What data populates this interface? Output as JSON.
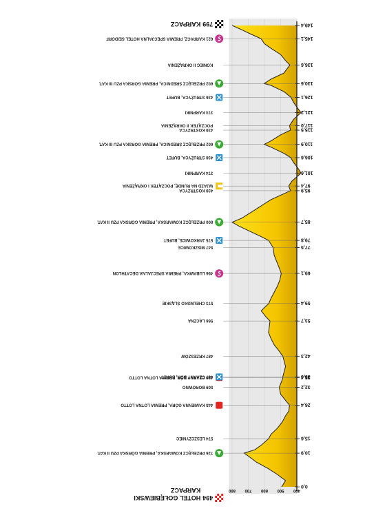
{
  "chart_data": {
    "type": "area",
    "orientation": "rotated-180",
    "start": {
      "alt": "494",
      "name": "HOTEL GOŁĘBIEWSKI",
      "name2": "KARPACZ"
    },
    "finish": {
      "alt": "799",
      "name": "KARPACZ"
    },
    "alt_ticks": [
      400,
      500,
      600,
      700,
      800
    ],
    "alt_range": [
      350,
      880
    ],
    "km_range": [
      0,
      149.4
    ],
    "km_ticks": [
      {
        "km": 0.0,
        "label": "0,0"
      },
      {
        "km": 10.9,
        "label": "10,9"
      },
      {
        "km": 15.6,
        "label": "15,6"
      },
      {
        "km": 26.4,
        "label": "26,4"
      },
      {
        "km": 32.2,
        "label": "32,2"
      },
      {
        "km": 35.4,
        "label": "35,4"
      },
      {
        "km": 35.6,
        "label": "35,6"
      },
      {
        "km": 42.3,
        "label": "42,3"
      },
      {
        "km": 53.7,
        "label": "53,7"
      },
      {
        "km": 59.4,
        "label": "59,4"
      },
      {
        "km": 69.1,
        "label": "69,1"
      },
      {
        "km": 77.5,
        "label": "77,5"
      },
      {
        "km": 79.8,
        "label": "79,8"
      },
      {
        "km": 85.7,
        "label": "85,7"
      },
      {
        "km": 95.9,
        "label": "95,9"
      },
      {
        "km": 97.4,
        "label": "97,4"
      },
      {
        "km": 101.6,
        "label": "101,6"
      },
      {
        "km": 106.6,
        "label": "106,6"
      },
      {
        "km": 110.9,
        "label": "110,9"
      },
      {
        "km": 115.5,
        "label": "115,5"
      },
      {
        "km": 117.0,
        "label": "117,0"
      },
      {
        "km": 121.2,
        "label": "121,2"
      },
      {
        "km": 126.1,
        "label": "126,1"
      },
      {
        "km": 130.6,
        "label": "130,6"
      },
      {
        "km": 136.6,
        "label": "136,6"
      },
      {
        "km": 145.1,
        "label": "145,1"
      },
      {
        "km": 149.4,
        "label": "149,4"
      }
    ],
    "profile": [
      [
        0,
        494
      ],
      [
        2,
        470
      ],
      [
        4,
        520
      ],
      [
        6,
        580
      ],
      [
        8,
        650
      ],
      [
        10,
        700
      ],
      [
        10.9,
        726
      ],
      [
        12,
        660
      ],
      [
        13.5,
        620
      ],
      [
        15.6,
        574
      ],
      [
        17,
        560
      ],
      [
        19,
        520
      ],
      [
        21,
        490
      ],
      [
        23,
        470
      ],
      [
        24.5,
        450
      ],
      [
        26.4,
        445
      ],
      [
        28,
        470
      ],
      [
        30,
        500
      ],
      [
        32.2,
        509
      ],
      [
        34,
        495
      ],
      [
        35.4,
        486
      ],
      [
        35.6,
        487
      ],
      [
        37,
        480
      ],
      [
        39,
        470
      ],
      [
        41,
        480
      ],
      [
        42.3,
        487
      ],
      [
        44,
        510
      ],
      [
        46,
        540
      ],
      [
        48,
        560
      ],
      [
        50,
        575
      ],
      [
        52,
        570
      ],
      [
        53.7,
        566
      ],
      [
        55,
        590
      ],
      [
        57,
        620
      ],
      [
        59.4,
        573
      ],
      [
        61,
        560
      ],
      [
        63,
        540
      ],
      [
        65,
        520
      ],
      [
        67,
        505
      ],
      [
        69.1,
        496
      ],
      [
        71,
        510
      ],
      [
        73,
        525
      ],
      [
        75,
        540
      ],
      [
        77.5,
        547
      ],
      [
        79.8,
        575
      ],
      [
        81,
        620
      ],
      [
        83,
        700
      ],
      [
        84.5,
        760
      ],
      [
        85.7,
        800
      ],
      [
        87,
        740
      ],
      [
        89,
        680
      ],
      [
        91,
        620
      ],
      [
        93,
        560
      ],
      [
        95.9,
        439
      ],
      [
        97.4,
        450
      ],
      [
        99,
        430
      ],
      [
        101.6,
        374
      ],
      [
        103,
        390
      ],
      [
        105,
        420
      ],
      [
        106.6,
        438
      ],
      [
        108,
        480
      ],
      [
        110,
        560
      ],
      [
        110.9,
        602
      ],
      [
        112,
        560
      ],
      [
        114,
        500
      ],
      [
        115.5,
        439
      ],
      [
        117,
        445
      ],
      [
        119,
        420
      ],
      [
        121.2,
        374
      ],
      [
        123,
        400
      ],
      [
        124.5,
        420
      ],
      [
        126.1,
        436
      ],
      [
        128,
        480
      ],
      [
        130,
        560
      ],
      [
        130.6,
        602
      ],
      [
        132,
        560
      ],
      [
        134,
        480
      ],
      [
        136.6,
        443
      ],
      [
        138,
        470
      ],
      [
        140,
        500
      ],
      [
        142,
        560
      ],
      [
        143.5,
        600
      ],
      [
        145.1,
        621
      ],
      [
        146.5,
        680
      ],
      [
        148,
        740
      ],
      [
        149.4,
        799
      ]
    ],
    "waypoints": [
      {
        "km": 10.9,
        "alt": "726",
        "name": "PRZEŁĘCZ KOWARSKA, PREMIA GÓRSKA PZU II KAT.",
        "icon": "mountain-premium",
        "color": "#3aaa35"
      },
      {
        "km": 15.6,
        "alt": "574",
        "name": "LESZCZYNIEC",
        "icon": "none"
      },
      {
        "km": 26.4,
        "alt": "445",
        "name": "KAMIENNA GÓRA, PREMIA LOTNA LOTTO",
        "icon": "sprint",
        "color": "#e32521"
      },
      {
        "km": 32.2,
        "alt": "509",
        "name": "BORÓWNO",
        "icon": "none"
      },
      {
        "km": 35.4,
        "alt": "486",
        "name": "CZARNY BÓR, PREMIA LOTNA LOTTO",
        "icon": "sprint",
        "color": "#e32521"
      },
      {
        "km": 35.6,
        "alt": "487",
        "name": "CZARNY BÓR, BUFET",
        "icon": "feed",
        "color": "#2a8fd0"
      },
      {
        "km": 42.3,
        "alt": "487",
        "name": "KRZESZÓW",
        "icon": "none"
      },
      {
        "km": 53.7,
        "alt": "566",
        "name": "LĄCZNA",
        "icon": "none"
      },
      {
        "km": 59.4,
        "alt": "573",
        "name": "CHEŁMSKO ŚLĄSKIE",
        "icon": "none"
      },
      {
        "km": 69.1,
        "alt": "496",
        "name": "LUBAWKA, PREMIA SPECJALNA DECATHLON",
        "icon": "special",
        "color": "#c8358e"
      },
      {
        "km": 77.5,
        "alt": "547",
        "name": "MISZKOWICE",
        "icon": "none"
      },
      {
        "km": 79.8,
        "alt": "575",
        "name": "JARKOWICE, BUFET",
        "icon": "feed",
        "color": "#2a8fd0"
      },
      {
        "km": 85.7,
        "alt": "800",
        "name": "PRZEŁĘCZ KOWARSKA, PREMIA GÓRSKA PZU II KAT.",
        "icon": "mountain-premium",
        "color": "#3aaa35"
      },
      {
        "km": 95.9,
        "alt": "439",
        "name": "KOSTRZYCA",
        "icon": "none"
      },
      {
        "km": 97.4,
        "alt": "",
        "name": "WJAZD NA RUNDĘ, POCZĄTEK I OKRĄŻENIA",
        "icon": "lap",
        "color": "#f0c419"
      },
      {
        "km": 101.6,
        "alt": "374",
        "name": "KARPNIKI",
        "icon": "none"
      },
      {
        "km": 106.6,
        "alt": "438",
        "name": "STRUŻYCA, BUFET",
        "icon": "feed",
        "color": "#2a8fd0"
      },
      {
        "km": 110.9,
        "alt": "602",
        "name": "PRZEŁĘCZ ŚREDNICA, PREMIA GÓRSKA PZU III KAT.",
        "icon": "mountain-premium",
        "color": "#3aaa35"
      },
      {
        "km": 115.5,
        "alt": "439",
        "name": "KOSTRZYCA",
        "icon": "none"
      },
      {
        "km": 117.0,
        "alt": "",
        "name": "POCZĄTEK II OKRĄŻENIA",
        "icon": "none"
      },
      {
        "km": 121.2,
        "alt": "374",
        "name": "KARPNIKI",
        "icon": "none"
      },
      {
        "km": 126.1,
        "alt": "436",
        "name": "STRUŻYCA, BUFET",
        "icon": "feed",
        "color": "#2a8fd0"
      },
      {
        "km": 130.6,
        "alt": "602",
        "name": "PRZEŁĘCZ ŚREDNICA, PREMIA GÓRSKA PZU III KAT.",
        "icon": "mountain-premium",
        "color": "#3aaa35"
      },
      {
        "km": 136.6,
        "alt": "",
        "name": "KONIEC II OKRĄŻENIA",
        "icon": "none"
      },
      {
        "km": 145.1,
        "alt": "621",
        "name": "KARPACZ, PREMIA SPECJALNA HOTEL SEIDORF",
        "icon": "special",
        "color": "#c8358e"
      }
    ],
    "colors": {
      "fill_top": "#ffe11a",
      "fill_shadow": "#c99a00",
      "band": "#e8e8e8",
      "line": "#222222"
    }
  }
}
